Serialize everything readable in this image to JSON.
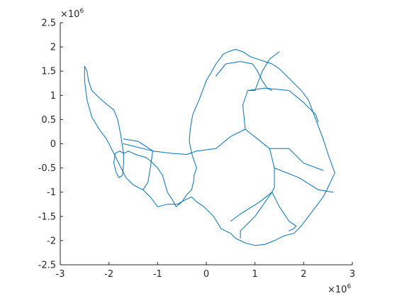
{
  "chart_data": {
    "type": "line",
    "title": "",
    "xlabel": "",
    "ylabel": "",
    "xlim": [
      -3000000,
      3000000
    ],
    "ylim": [
      -2500000,
      2500000
    ],
    "xticks": [
      -3000000,
      -2000000,
      -1000000,
      0,
      1000000,
      2000000,
      3000000
    ],
    "yticks": [
      -2500000,
      -2000000,
      -1500000,
      -1000000,
      -500000,
      0,
      500000,
      1000000,
      1500000,
      2000000,
      2500000
    ],
    "xtick_labels": [
      "-3",
      "-2",
      "-1",
      "0",
      "1",
      "2",
      "3"
    ],
    "ytick_labels": [
      "-2.5",
      "-2",
      "-1.5",
      "-1",
      "-0.5",
      "0",
      "0.5",
      "1",
      "1.5",
      "2",
      "2.5"
    ],
    "x_exponent_base": "×10",
    "x_exponent_power": "6",
    "y_exponent_base": "×10",
    "y_exponent_power": "6",
    "grid": false,
    "line_color": "#0072BD",
    "series": [
      {
        "kind": "coastline",
        "x": [
          -2500000,
          -2450000,
          -2420000,
          -2350000,
          -2200000,
          -2050000,
          -1900000,
          -1820000,
          -1760000,
          -1700000,
          -1700000,
          -1720000,
          -1790000,
          -1850000,
          -1900000,
          -1870000,
          -1780000,
          -1700000,
          -1650000,
          -1600000,
          -1500000,
          -1400000,
          -1250000,
          -1150000,
          -1000000,
          -900000,
          -800000,
          -700000,
          -620000,
          -500000,
          -400000,
          -300000,
          -280000,
          -260000,
          -250000,
          -200000,
          -250000,
          -300000,
          -350000,
          -330000,
          -280000,
          -150000,
          0,
          200000,
          350000,
          450000,
          600000,
          750000,
          900000,
          1050000,
          1200000,
          1350000,
          1500000,
          1650000,
          1800000,
          1950000,
          2100000,
          2250000,
          2400000,
          2530000,
          2640000,
          2500000,
          2400000,
          2250000,
          2100000,
          1950000,
          1800000,
          1600000,
          1400000,
          1200000,
          1000000,
          800000,
          600000,
          500000,
          300000,
          150000,
          -50000,
          -200000,
          -300000,
          -420000,
          -600000,
          -800000,
          -1000000,
          -1150000,
          -1300000,
          -1500000,
          -1650000,
          -1750000,
          -1850000,
          -1950000,
          -2050000,
          -2200000,
          -2350000,
          -2450000,
          -2500000
        ],
        "y": [
          1600000,
          1500000,
          1300000,
          1100000,
          950000,
          820000,
          700000,
          500000,
          200000,
          -200000,
          -400000,
          -650000,
          -700000,
          -600000,
          -400000,
          -200000,
          -150000,
          -200000,
          -180000,
          -150000,
          -200000,
          -240000,
          -280000,
          -350000,
          -500000,
          -650000,
          -1000000,
          -1150000,
          -1300000,
          -1200000,
          -1050000,
          -950000,
          -850000,
          -780000,
          -650000,
          -500000,
          -350000,
          -200000,
          50000,
          300000,
          600000,
          900000,
          1300000,
          1650000,
          1850000,
          1900000,
          1950000,
          1900000,
          1800000,
          1750000,
          1700000,
          1650000,
          1550000,
          1400000,
          1250000,
          1100000,
          900000,
          500000,
          100000,
          -300000,
          -600000,
          -900000,
          -1100000,
          -1300000,
          -1500000,
          -1700000,
          -1850000,
          -1900000,
          -2000000,
          -2080000,
          -2100000,
          -2050000,
          -1950000,
          -1850000,
          -1750000,
          -1500000,
          -1300000,
          -1200000,
          -1100000,
          -1150000,
          -1250000,
          -1250000,
          -1300000,
          -1100000,
          -950000,
          -850000,
          -700000,
          -500000,
          -300000,
          -100000,
          100000,
          300000,
          550000,
          900000,
          1300000
        ]
      },
      {
        "kind": "basin-boundary",
        "x": [
          -1700000,
          -1100000,
          -700000,
          -400000,
          -200000
        ],
        "y": [
          0,
          -150000,
          -200000,
          -220000,
          -150000
        ]
      },
      {
        "kind": "basin-boundary",
        "x": [
          -200000,
          200000,
          500000,
          800000,
          1300000,
          1700000,
          2000000,
          2400000
        ],
        "y": [
          -150000,
          -100000,
          150000,
          300000,
          -100000,
          -100000,
          -400000,
          -550000
        ]
      },
      {
        "kind": "basin-boundary",
        "x": [
          800000,
          750000,
          850000,
          1000000,
          1150000,
          1300000,
          1500000
        ],
        "y": [
          300000,
          800000,
          1100000,
          1100000,
          1500000,
          1750000,
          1900000
        ]
      },
      {
        "kind": "basin-boundary",
        "x": [
          850000,
          1200000,
          1700000,
          2000000,
          2250000,
          2300000
        ],
        "y": [
          1100000,
          1150000,
          1100000,
          850000,
          600000,
          450000
        ]
      },
      {
        "kind": "basin-boundary",
        "x": [
          200000,
          400000,
          700000,
          950000,
          1050000,
          1150000,
          1250000,
          1350000
        ],
        "y": [
          1400000,
          1650000,
          1700000,
          1650000,
          1500000,
          1300000,
          1150000,
          1100000
        ]
      },
      {
        "kind": "basin-boundary",
        "x": [
          1300000,
          1400000,
          1400000,
          1350000,
          1100000,
          700000,
          500000
        ],
        "y": [
          -100000,
          -500000,
          -900000,
          -1000000,
          -1200000,
          -1450000,
          -1600000
        ]
      },
      {
        "kind": "basin-boundary",
        "x": [
          1350000,
          1500000,
          1700000,
          1850000,
          1800000,
          1700000
        ],
        "y": [
          -1000000,
          -1300000,
          -1600000,
          -1700000,
          -1750000,
          -1800000
        ]
      },
      {
        "kind": "basin-boundary",
        "x": [
          1400000,
          1900000,
          2300000,
          2600000
        ],
        "y": [
          -500000,
          -700000,
          -950000,
          -1000000
        ]
      },
      {
        "kind": "basin-boundary",
        "x": [
          1350000,
          1000000,
          700000,
          700000
        ],
        "y": [
          -1000000,
          -1500000,
          -1800000,
          -1950000
        ]
      },
      {
        "kind": "basin-boundary",
        "x": [
          -1100000,
          -1150000,
          -1200000,
          -1300000
        ],
        "y": [
          -150000,
          -500000,
          -800000,
          -950000
        ]
      },
      {
        "kind": "basin-boundary",
        "x": [
          -1700000,
          -1400000,
          -1100000
        ],
        "y": [
          100000,
          50000,
          -150000
        ]
      }
    ]
  }
}
